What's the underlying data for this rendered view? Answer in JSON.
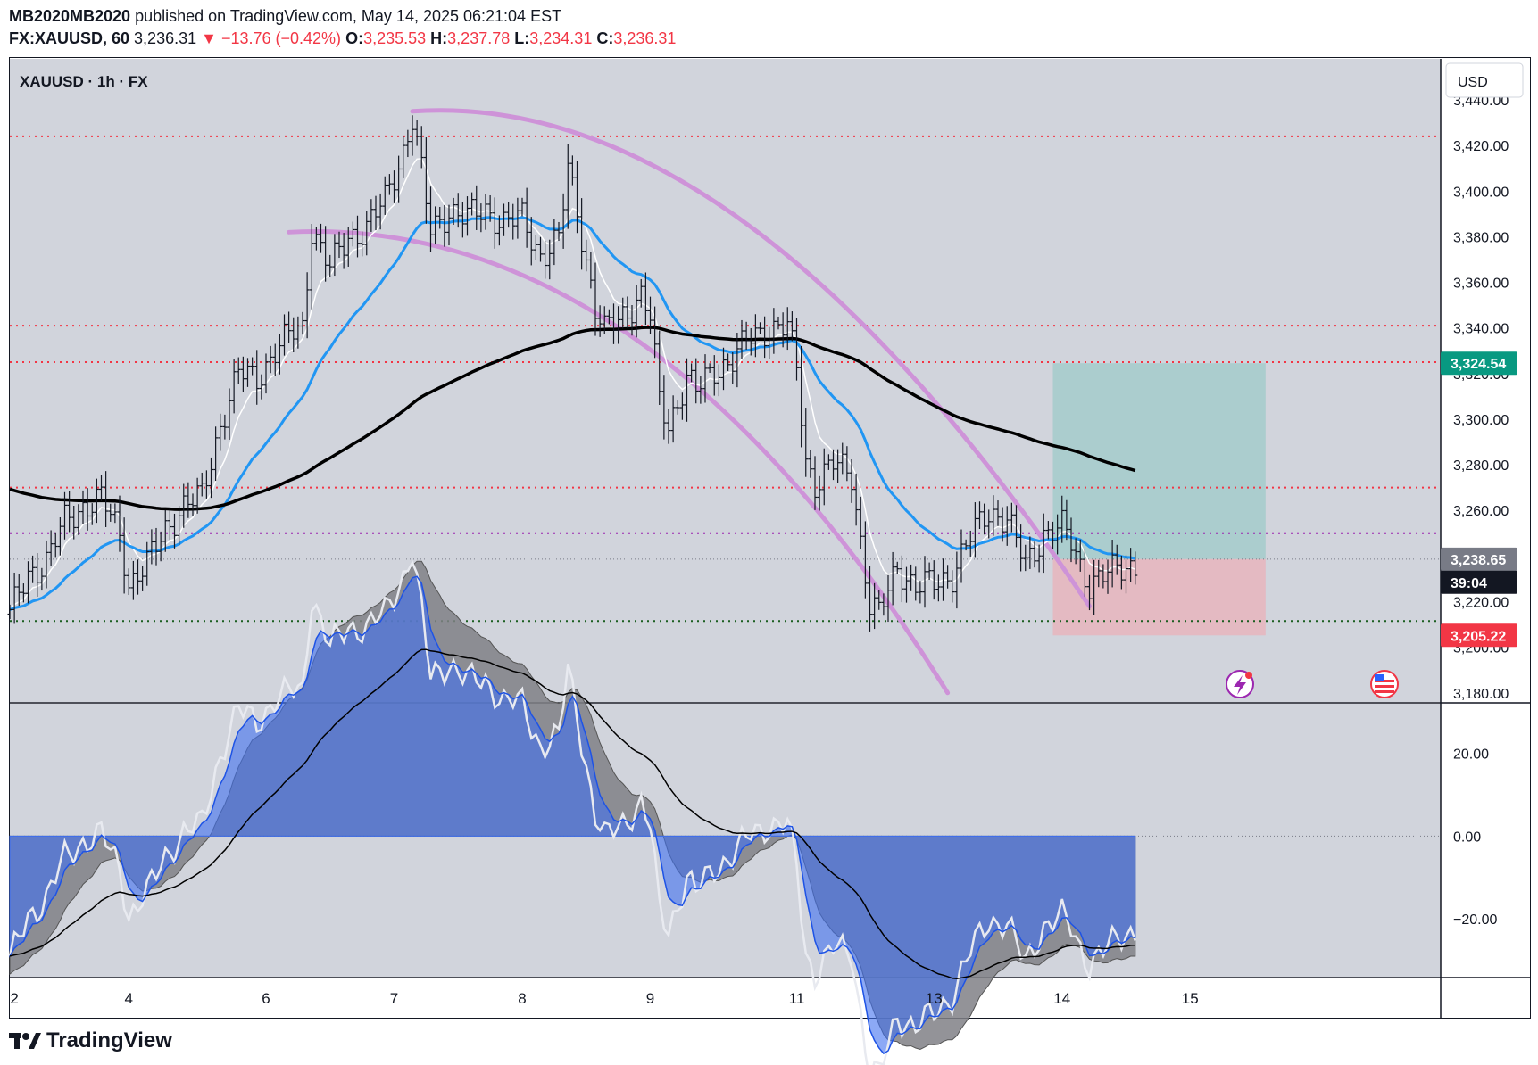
{
  "header": {
    "author": "MB2020MB2020",
    "published_text": "published on TradingView.com, May 14, 2025 06:21:04 EST",
    "symbol_line": "FX:XAUUSD, 60",
    "last": "3,236.31",
    "change": "▼ −13.76 (−0.42%)",
    "o_label": "O:",
    "o": "3,235.53",
    "h_label": "H:",
    "h": "3,237.78",
    "l_label": "L:",
    "l": "3,234.31",
    "c_label": "C:",
    "c": "3,236.31"
  },
  "legend": {
    "title": "XAUUSD · 1h · FX"
  },
  "currency_button": "USD",
  "footer": {
    "brand": "TradingView"
  },
  "colors": {
    "background": "#d1d4dc",
    "resistance_dotted": "#f23645",
    "pivot_dotted": "#9c27b0",
    "support_dotted": "#1b5e20",
    "ema_fast": "#ffffff",
    "ema_mid": "#2196f3",
    "ema_slow": "#000000",
    "channel_arc": "#ce93d8",
    "target_zone": "#a6cccc",
    "stop_zone": "#e6b7bf",
    "osc_blue": "#3f6ff0",
    "osc_grey": "#808086"
  },
  "chart_data": {
    "type": "candlestick",
    "x_axis_labels": [
      "2",
      "4",
      "6",
      "7",
      "8",
      "9",
      "11",
      "13",
      "14",
      "15"
    ],
    "x_axis_index": [
      1,
      26,
      56,
      84,
      112,
      140,
      172,
      202,
      230,
      258
    ],
    "y_axis_labels": [
      "3,440.00",
      "3,420.00",
      "3,400.00",
      "3,380.00",
      "3,360.00",
      "3,340.00",
      "3,320.00",
      "3,300.00",
      "3,280.00",
      "3,260.00",
      "3,240.00",
      "3,220.00",
      "3,200.00",
      "3,180.00"
    ],
    "y_range": [
      3176,
      3458
    ],
    "price_badges": [
      {
        "label": "3,324.54",
        "value": 3324.54,
        "color": "#089981",
        "text_color": "#ffffff"
      },
      {
        "label": "3,238.65",
        "value": 3238.65,
        "color": "#787b86",
        "text_color": "#ffffff"
      },
      {
        "label": "39:04",
        "value": 3228.5,
        "color": "#131722",
        "text_color": "#ffffff"
      },
      {
        "label": "3,205.22",
        "value": 3205.22,
        "color": "#f23645",
        "text_color": "#ffffff"
      }
    ],
    "horizontal_levels": [
      {
        "value": 3424,
        "style": "resistance"
      },
      {
        "value": 3341,
        "style": "resistance"
      },
      {
        "value": 3325,
        "style": "resistance"
      },
      {
        "value": 3270,
        "style": "resistance"
      },
      {
        "value": 3250,
        "style": "pivot"
      },
      {
        "value": 3211.5,
        "style": "support"
      }
    ],
    "close_approx": [
      [
        0,
        3214
      ],
      [
        4,
        3232
      ],
      [
        8,
        3238
      ],
      [
        12,
        3255
      ],
      [
        16,
        3262
      ],
      [
        20,
        3265
      ],
      [
        24,
        3250
      ],
      [
        26,
        3228
      ],
      [
        30,
        3236
      ],
      [
        34,
        3252
      ],
      [
        38,
        3262
      ],
      [
        42,
        3266
      ],
      [
        46,
        3298
      ],
      [
        50,
        3320
      ],
      [
        54,
        3318
      ],
      [
        58,
        3330
      ],
      [
        62,
        3338
      ],
      [
        64,
        3340
      ],
      [
        66,
        3384
      ],
      [
        70,
        3366
      ],
      [
        74,
        3380
      ],
      [
        78,
        3384
      ],
      [
        82,
        3396
      ],
      [
        86,
        3418
      ],
      [
        88,
        3432
      ],
      [
        90,
        3408
      ],
      [
        92,
        3382
      ],
      [
        96,
        3392
      ],
      [
        100,
        3388
      ],
      [
        104,
        3392
      ],
      [
        108,
        3386
      ],
      [
        112,
        3388
      ],
      [
        116,
        3372
      ],
      [
        120,
        3378
      ],
      [
        122,
        3410
      ],
      [
        124,
        3392
      ],
      [
        126,
        3370
      ],
      [
        128,
        3348
      ],
      [
        130,
        3338
      ],
      [
        134,
        3346
      ],
      [
        138,
        3354
      ],
      [
        140,
        3344
      ],
      [
        142,
        3308
      ],
      [
        144,
        3298
      ],
      [
        148,
        3318
      ],
      [
        150,
        3312
      ],
      [
        154,
        3322
      ],
      [
        158,
        3326
      ],
      [
        162,
        3336
      ],
      [
        166,
        3340
      ],
      [
        170,
        3340
      ],
      [
        172,
        3322
      ],
      [
        174,
        3282
      ],
      [
        176,
        3272
      ],
      [
        180,
        3280
      ],
      [
        184,
        3276
      ],
      [
        188,
        3218
      ],
      [
        190,
        3214
      ],
      [
        194,
        3236
      ],
      [
        198,
        3226
      ],
      [
        202,
        3228
      ],
      [
        206,
        3232
      ],
      [
        210,
        3248
      ],
      [
        214,
        3260
      ],
      [
        218,
        3256
      ],
      [
        222,
        3236
      ],
      [
        226,
        3250
      ],
      [
        230,
        3252
      ],
      [
        232,
        3246
      ],
      [
        234,
        3236
      ],
      [
        236,
        3228
      ],
      [
        240,
        3232
      ],
      [
        244,
        3236
      ],
      [
        246,
        3236
      ]
    ],
    "series": [
      {
        "name": "",
        "role": "ema_fast"
      },
      {
        "name": "",
        "role": "ema_mid"
      },
      {
        "name": "",
        "role": "ema_slow"
      }
    ],
    "trade_zone": {
      "entry": 3238.65,
      "target": 3324.54,
      "stop": 3205.22
    },
    "oscillator": {
      "y_axis_labels": [
        "20.00",
        "0.00",
        "−20.00"
      ],
      "y_range": [
        -34,
        32
      ]
    }
  }
}
